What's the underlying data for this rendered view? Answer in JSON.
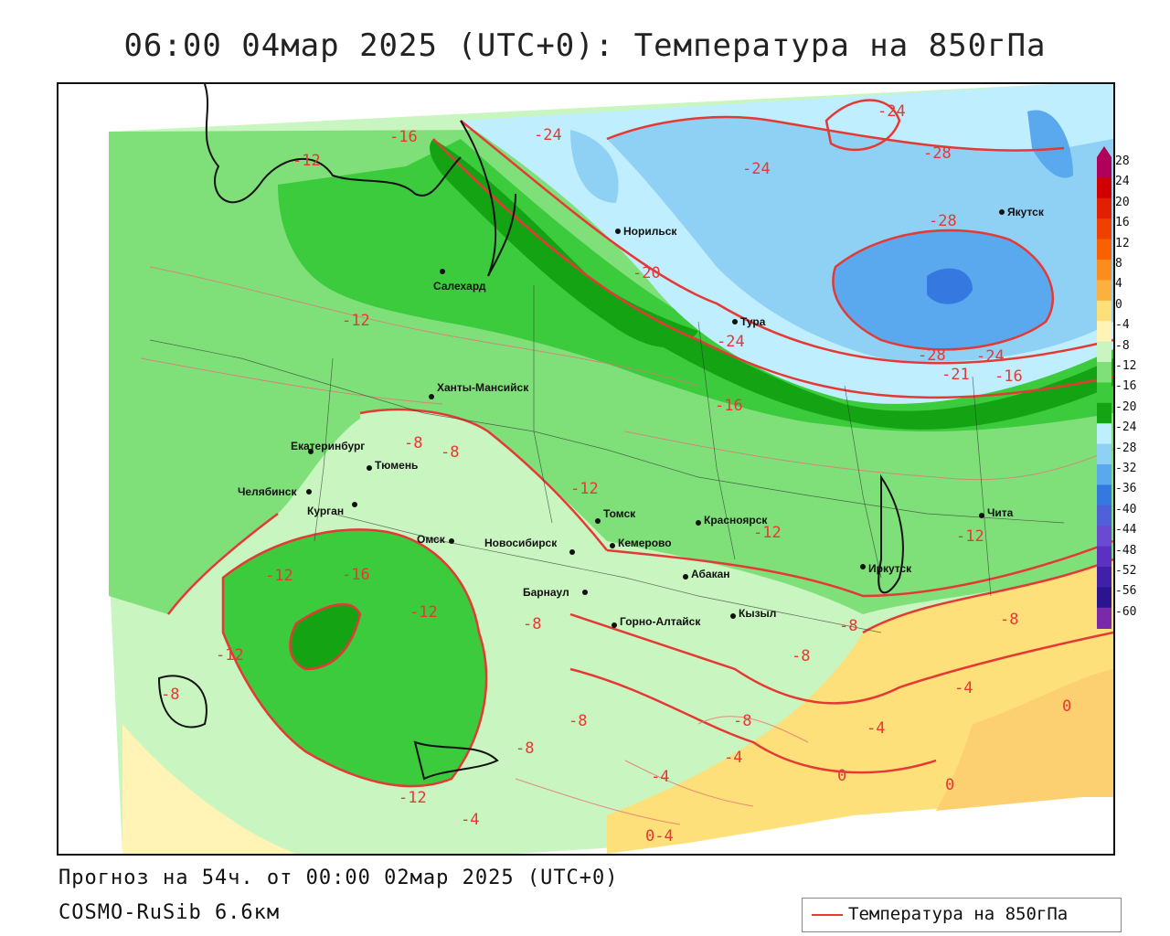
{
  "title": "06:00 04мар 2025 (UTC+0): Температура на 850гПа",
  "footer": {
    "forecast": "Прогноз на 54ч. от 00:00 02мар 2025 (UTC+0)",
    "model": "COSMO-RuSib 6.6км"
  },
  "legend": {
    "label": "Температура на 850гПа",
    "line_color": "#e53935"
  },
  "colorbar": {
    "levels": [
      "28",
      "24",
      "20",
      "16",
      "12",
      "8",
      "4",
      "0",
      "-4",
      "-8",
      "-12",
      "-16",
      "-20",
      "-24",
      "-28",
      "-32",
      "-36",
      "-40",
      "-44",
      "-48",
      "-52",
      "-56",
      "-60"
    ],
    "colors": [
      "#b0005a",
      "#d10000",
      "#e02000",
      "#f04000",
      "#f86000",
      "#fb8c1e",
      "#fcb040",
      "#fde07a",
      "#fff3b5",
      "#c9f5c0",
      "#7fe07a",
      "#3ccb3c",
      "#13a313",
      "#bfeeff",
      "#8fd0f5",
      "#5aa8ee",
      "#3478e0",
      "#5060d8",
      "#6a4ad0",
      "#5c30c0",
      "#4020a8",
      "#2c1490",
      "#7a2aa8"
    ]
  },
  "cities": [
    {
      "name": "Норильск"
    },
    {
      "name": "Якутск"
    },
    {
      "name": "Салехард"
    },
    {
      "name": "Тура"
    },
    {
      "name": "Ханты-Мансийск"
    },
    {
      "name": "Екатеринбург"
    },
    {
      "name": "Тюмень"
    },
    {
      "name": "Челябинск"
    },
    {
      "name": "Курган"
    },
    {
      "name": "Омск"
    },
    {
      "name": "Новосибирск"
    },
    {
      "name": "Томск"
    },
    {
      "name": "Кемерово"
    },
    {
      "name": "Красноярск"
    },
    {
      "name": "Абакан"
    },
    {
      "name": "Барнаул"
    },
    {
      "name": "Горно-Алтайск"
    },
    {
      "name": "Кызыл"
    },
    {
      "name": "Иркутск"
    },
    {
      "name": "Чита"
    }
  ],
  "contour_labels": [
    "-16",
    "-12",
    "-24",
    "-24",
    "-28",
    "-24",
    "-28",
    "-20",
    "-24",
    "-28",
    "-24",
    "-21",
    "-16",
    "-12",
    "-16",
    "-8",
    "-8",
    "-12",
    "-12",
    "-12",
    "-16",
    "-12",
    "-12",
    "-8",
    "-8",
    "-12",
    "-8",
    "-8",
    "-4",
    "0",
    "-8",
    "-8",
    "-8",
    "-4",
    "-4",
    "-4",
    "0",
    "0",
    "-8",
    "-12",
    "-4",
    "0-4"
  ]
}
